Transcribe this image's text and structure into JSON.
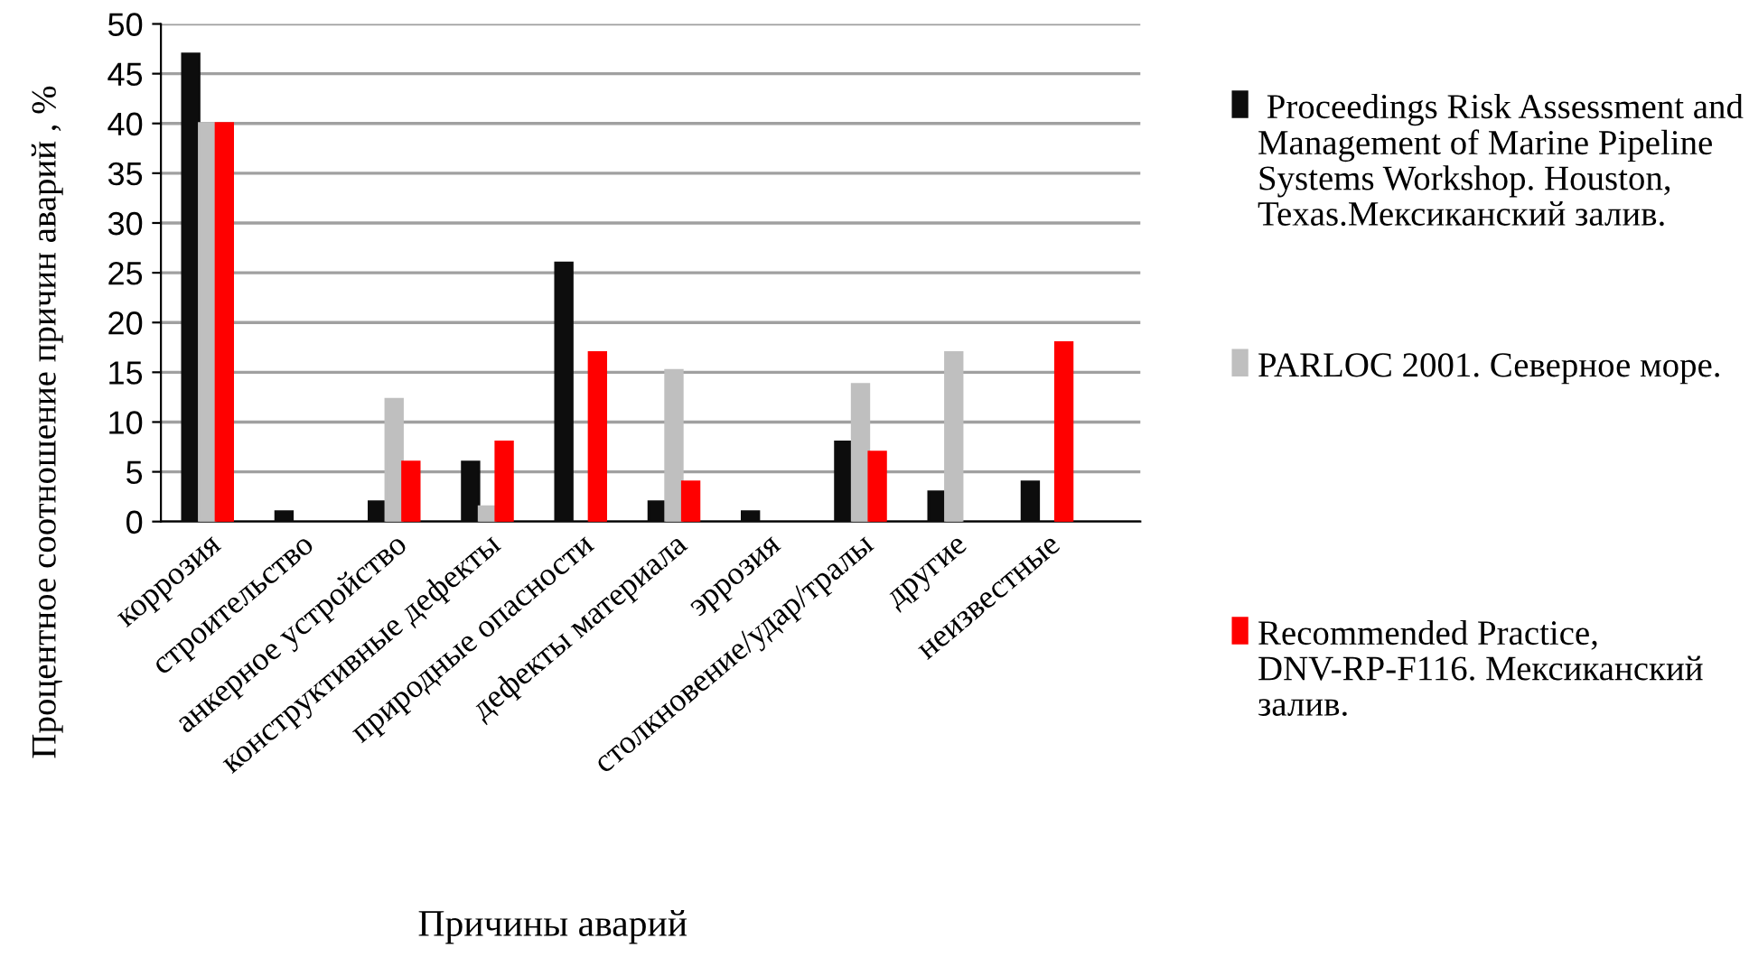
{
  "chart_data": {
    "type": "bar",
    "xlabel": "Причины аварий",
    "ylabel": "Процентное соотношение причин аварий , %",
    "categories": [
      "коррозия",
      "строительство",
      "анкерное устройство",
      "конструктивные дефекты",
      "природные опасности",
      "дефекты материала",
      "эррозия",
      "столкновение/удар/тралы",
      "другие",
      "неизвестные"
    ],
    "series": [
      {
        "name": " Proceedings Risk Assessment and Management of Marine Pipeline Systems Workshop. Houston, Texas.Мексиканский залив.",
        "color": "#0d0d0d",
        "values": [
          47,
          1,
          2,
          6,
          26,
          2,
          1,
          8,
          3,
          4
        ]
      },
      {
        "name": "PARLOC 2001. Северное море.",
        "color": "#bfbfbf",
        "values": [
          40,
          null,
          12.3,
          1.5,
          null,
          15.2,
          null,
          13.8,
          17,
          null
        ]
      },
      {
        "name": "Recommended Practice, DNV-RP-F116. Мексиканский залив.",
        "color": "#ff0000",
        "values": [
          40,
          null,
          6,
          8,
          17,
          4,
          null,
          7,
          null,
          18
        ]
      }
    ],
    "ylim": [
      0,
      50
    ],
    "yticks": [
      0,
      5,
      10,
      15,
      20,
      25,
      30,
      35,
      40,
      45,
      50
    ],
    "grid": "y",
    "legend": "right"
  }
}
